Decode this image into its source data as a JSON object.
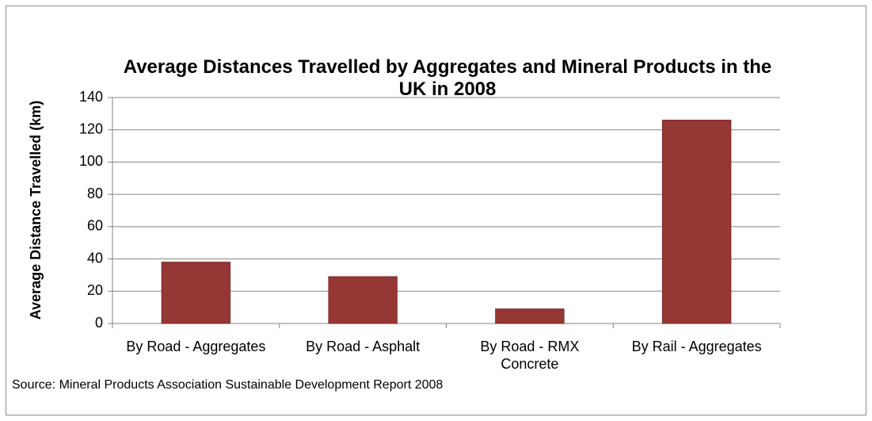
{
  "chart_data": {
    "type": "bar",
    "title": "Average Distances Travelled by Aggregates and Mineral Products in the UK in 2008",
    "y_label": "Average Distance Travelled (km)",
    "source": "Source: Mineral Products Association Sustainable Development Report 2008",
    "categories": [
      "By Road - Aggregates",
      "By Road - Asphalt",
      "By Road - RMX Concrete",
      "By Rail - Aggregates"
    ],
    "values": [
      38,
      29,
      9,
      126
    ],
    "color": "#953735",
    "ylim": [
      0,
      140
    ],
    "yticks": [
      0,
      20,
      40,
      60,
      80,
      100,
      120,
      140
    ],
    "grid": true
  }
}
